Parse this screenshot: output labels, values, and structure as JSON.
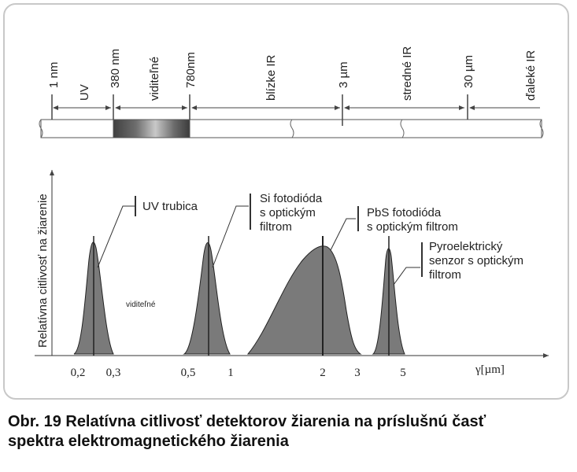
{
  "spectrum_bar": {
    "markers": [
      {
        "id": "m1",
        "label": "1 nm"
      },
      {
        "id": "m2",
        "label": "380 nm"
      },
      {
        "id": "m3",
        "label": "780nm"
      },
      {
        "id": "m4",
        "label": "3 µm"
      },
      {
        "id": "m5",
        "label": "30 µm"
      }
    ],
    "regions": [
      {
        "id": "uv",
        "label": "UV"
      },
      {
        "id": "vis",
        "label": "viditeľné"
      },
      {
        "id": "nir",
        "label": "blízke IR"
      },
      {
        "id": "mir",
        "label": "stredné IR"
      },
      {
        "id": "fir",
        "label": "ďaleké IR"
      }
    ],
    "visible_gradient": [
      "#404040",
      "#6e6e6e",
      "#c8c8c8",
      "#6a6a6a",
      "#3c3c3c"
    ]
  },
  "plot": {
    "ylabel": "Relatívna citlivosť na žiarenie",
    "xlabel": "γ[µm]",
    "x_ticks": [
      "0,2",
      "0,3",
      "0,5",
      "1",
      "2",
      "3",
      "5"
    ],
    "inner_label": "viditeľné",
    "fill_color": "#7a7a7a",
    "line_color": "#222222"
  },
  "detectors": [
    {
      "id": "uv-tube",
      "lines": [
        "UV trubica"
      ]
    },
    {
      "id": "si-photodiode",
      "lines": [
        "Si fotodióda",
        "s optickým",
        "filtrom"
      ]
    },
    {
      "id": "pbs-photodiode",
      "lines": [
        "PbS fotodióda",
        "s optickým filtrom"
      ]
    },
    {
      "id": "pyroelectric",
      "lines": [
        "Pyroelektrický",
        "senzor s optickým",
        "filtrom"
      ]
    }
  ],
  "caption": {
    "line1": "Obr. 19 Relatívna citlivosť detektorov žiarenia na príslušnú časť",
    "line2": "spektra elektromagnetického žiarenia"
  }
}
